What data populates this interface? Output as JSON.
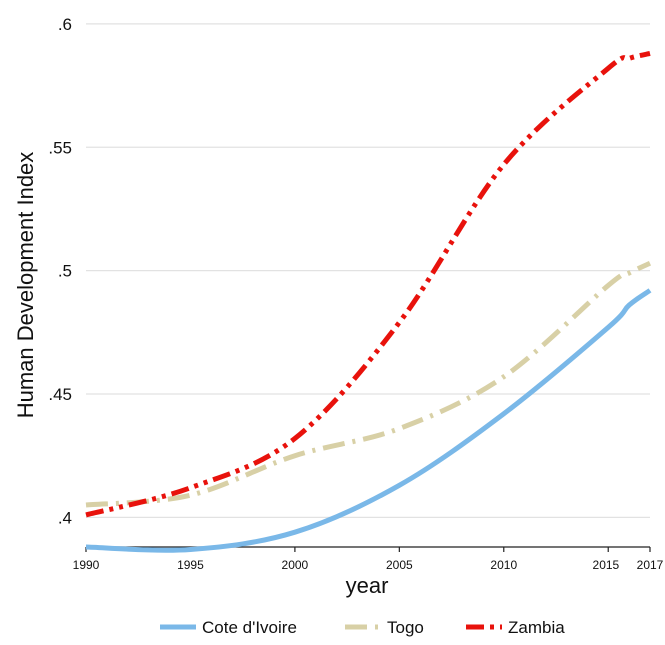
{
  "chart_data": {
    "type": "line",
    "xlabel": "year",
    "ylabel": "Human Development Index",
    "xlim": [
      1990,
      2017
    ],
    "ylim": [
      0.388,
      0.604
    ],
    "x_ticks": [
      1990,
      1995,
      2000,
      2005,
      2010,
      2015,
      2017
    ],
    "y_ticks": [
      {
        "value": 0.4,
        "label": ".4"
      },
      {
        "value": 0.45,
        "label": ".45"
      },
      {
        "value": 0.5,
        "label": ".5"
      },
      {
        "value": 0.55,
        "label": ".55"
      },
      {
        "value": 0.6,
        "label": ".6"
      }
    ],
    "grid": "horizontal",
    "legend_position": "bottom",
    "series": [
      {
        "name": "Cote d'Ivoire",
        "color": "#7ab8e8",
        "style": "solid",
        "x": [
          1990,
          1995,
          2000,
          2005,
          2010,
          2015,
          2016,
          2017
        ],
        "y": [
          0.388,
          0.387,
          0.394,
          0.413,
          0.442,
          0.477,
          0.486,
          0.492
        ]
      },
      {
        "name": "Togo",
        "color": "#d8d0a6",
        "style": "long-dash-dot",
        "x": [
          1990,
          1995,
          2000,
          2005,
          2010,
          2015,
          2016,
          2017
        ],
        "y": [
          0.405,
          0.409,
          0.425,
          0.436,
          0.457,
          0.494,
          0.499,
          0.503
        ]
      },
      {
        "name": "Zambia",
        "color": "#e8120c",
        "style": "dash-dot-dot",
        "x": [
          1990,
          1995,
          2000,
          2005,
          2010,
          2015,
          2016,
          2017
        ],
        "y": [
          0.401,
          0.412,
          0.432,
          0.479,
          0.543,
          0.582,
          0.586,
          0.588
        ]
      }
    ]
  }
}
